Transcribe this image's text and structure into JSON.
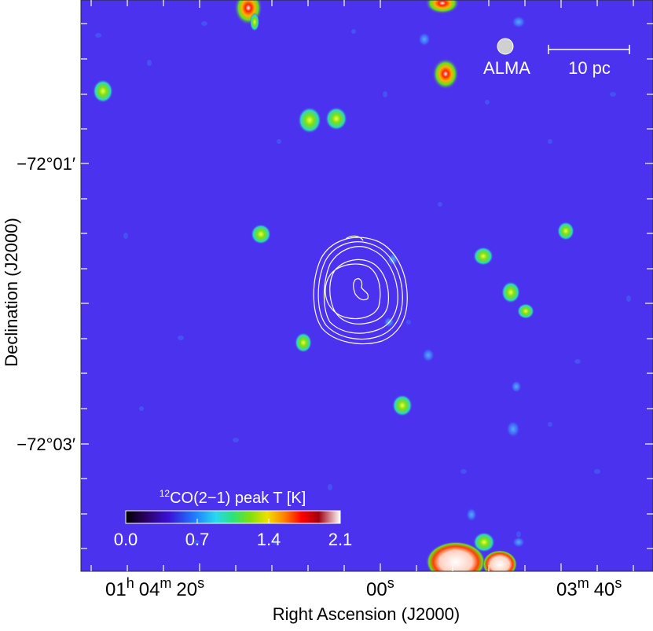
{
  "figure": {
    "ra_ticks": [
      {
        "h": "01",
        "h_unit": "h",
        "m": "04",
        "m_unit": "m",
        "s": "20",
        "s_unit": "s"
      },
      {
        "s": "00",
        "s_unit": "s"
      },
      {
        "m": "03",
        "m_unit": "m",
        "s": "40",
        "s_unit": "s"
      }
    ],
    "dec_ticks": [
      "−72°01′",
      "−72°03′"
    ],
    "xlabel": "Right Ascension (J2000)",
    "ylabel": "Declination (J2000)",
    "beam_label": "ALMA",
    "scalebar_label": "10 pc",
    "colorbar": {
      "title_sup": "12",
      "title_main": "CO(2−1) peak T [K]",
      "ticks": [
        "0.0",
        "0.7",
        "1.4",
        "2.1"
      ],
      "range": [
        0.0,
        2.1
      ],
      "colors": [
        "#000000",
        "#2a0060",
        "#3a10d8",
        "#1f7bff",
        "#28d8f0",
        "#2de27a",
        "#7de010",
        "#f0e000",
        "#ff8000",
        "#ff0000",
        "#a00010",
        "#ffffff"
      ]
    },
    "map_background_color": "#4b32ee",
    "contour_color": "#ffffff"
  }
}
